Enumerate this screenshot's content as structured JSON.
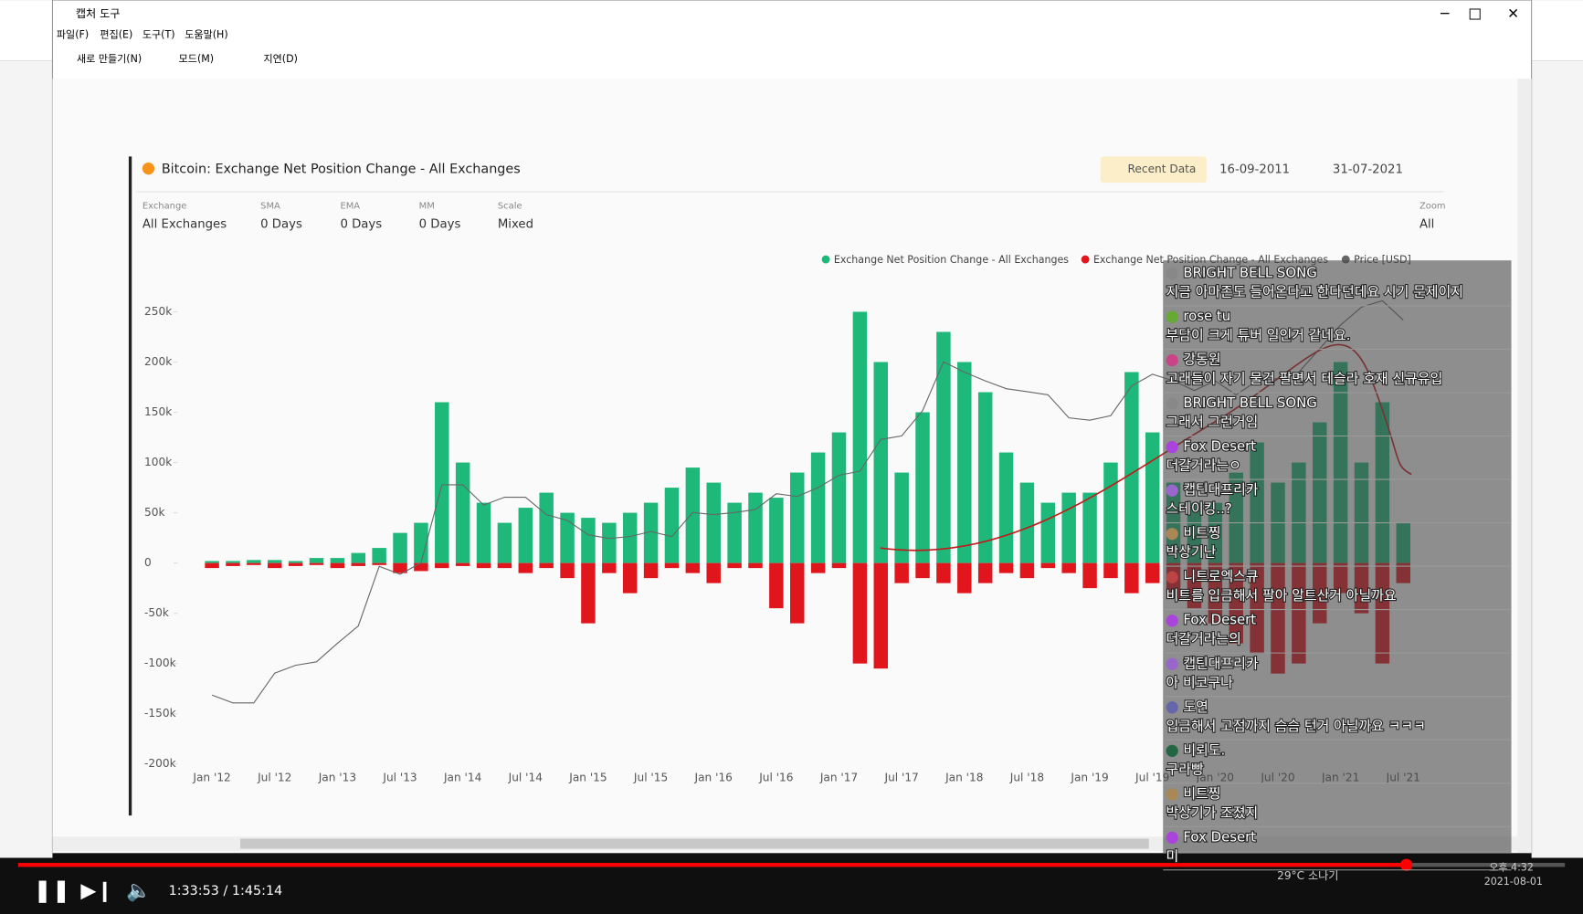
{
  "window": {
    "title": "캡처 도구",
    "menu": [
      "파일(F)",
      "편집(E)",
      "도구(T)",
      "도움말(H)"
    ],
    "toolbar": [
      "새로 만들기(N)",
      "모드(M)",
      "지연(D)"
    ]
  },
  "chart_data": {
    "type": "bar",
    "title": "Bitcoin: Exchange Net Position Change - All Exchanges",
    "recent_button": "Recent Data",
    "date_from": "16-09-2011",
    "date_to": "31-07-2021",
    "filters": [
      {
        "label": "Exchange",
        "value": "All Exchanges"
      },
      {
        "label": "SMA",
        "value": "0 Days"
      },
      {
        "label": "EMA",
        "value": "0 Days"
      },
      {
        "label": "MM",
        "value": "0 Days"
      },
      {
        "label": "Scale",
        "value": "Mixed"
      },
      {
        "label": "Zoom",
        "value": "All"
      }
    ],
    "categories": [
      "Jan '12",
      null,
      null,
      "Jul '12",
      null,
      null,
      "Jan '13",
      null,
      null,
      "Jul '13",
      null,
      null,
      "Jan '14",
      null,
      null,
      "Jul '14",
      null,
      null,
      "Jan '15",
      null,
      null,
      "Jul '15",
      null,
      null,
      "Jan '16",
      null,
      null,
      "Jul '16",
      null,
      null,
      "Jan '17",
      null,
      null,
      "Jul '17",
      null,
      null,
      "Jan '18",
      null,
      null,
      "Jul '18",
      null,
      null,
      "Jan '19",
      null,
      null,
      "Jul '19",
      null,
      null,
      "Jan '20",
      null,
      null,
      "Jul '20",
      null,
      null,
      "Jan '21",
      null,
      null,
      "Jul '21"
    ],
    "series": [
      {
        "name": "Exchange Net Position Change - All Exchanges",
        "color": "#1db87a",
        "values": [
          2000,
          2000,
          3000,
          3000,
          2000,
          5000,
          5000,
          10000,
          15000,
          30000,
          40000,
          160000,
          100000,
          60000,
          40000,
          55000,
          70000,
          50000,
          45000,
          40000,
          50000,
          60000,
          75000,
          95000,
          80000,
          60000,
          70000,
          65000,
          90000,
          110000,
          130000,
          250000,
          200000,
          90000,
          150000,
          230000,
          200000,
          170000,
          110000,
          80000,
          60000,
          70000,
          70000,
          100000,
          190000,
          130000,
          80000,
          60000,
          60000,
          90000,
          120000,
          80000,
          100000,
          140000,
          200000,
          100000,
          160000,
          40000
        ]
      },
      {
        "name": "Exchange Net Position Change - All Exchanges",
        "color": "#e0161c",
        "values": [
          -5000,
          -3000,
          -2000,
          -5000,
          -3000,
          -2000,
          -5000,
          -3000,
          -2000,
          -10000,
          -8000,
          -5000,
          -3000,
          -5000,
          -5000,
          -10000,
          -5000,
          -15000,
          -60000,
          -10000,
          -30000,
          -15000,
          -5000,
          -10000,
          -20000,
          -5000,
          -5000,
          -45000,
          -60000,
          -10000,
          -5000,
          -100000,
          -105000,
          -20000,
          -15000,
          -20000,
          -30000,
          -20000,
          -10000,
          -15000,
          -5000,
          -10000,
          -25000,
          -15000,
          -30000,
          -20000,
          -35000,
          -45000,
          -60000,
          -80000,
          -90000,
          -110000,
          -100000,
          -60000,
          -30000,
          -50000,
          -100000,
          -20000
        ]
      },
      {
        "name": "Price [USD]",
        "color": "#666666",
        "axis": "y2",
        "values": [
          6,
          5,
          5,
          10,
          12,
          13,
          20,
          30,
          120,
          100,
          130,
          800,
          800,
          500,
          600,
          600,
          400,
          350,
          250,
          230,
          240,
          270,
          240,
          420,
          400,
          420,
          450,
          650,
          610,
          750,
          1000,
          1100,
          2300,
          2500,
          4500,
          14000,
          11000,
          9000,
          7500,
          7000,
          6500,
          3800,
          3600,
          4000,
          8000,
          10500,
          9000,
          7200,
          9000,
          6500,
          9000,
          9500,
          11000,
          19000,
          33000,
          50000,
          58000,
          37000
        ]
      }
    ],
    "ylim": [
      -208000,
      269000
    ],
    "yticks": [
      {
        "value": -200000,
        "label": "-200k"
      },
      {
        "value": -150000,
        "label": "-150k"
      },
      {
        "value": -100000,
        "label": "-100k"
      },
      {
        "value": -50000,
        "label": "-50k"
      },
      0,
      {
        "value": 50000,
        "label": "50k"
      },
      {
        "value": 100000,
        "label": "100k"
      },
      {
        "value": 150000,
        "label": "150k"
      },
      {
        "value": 200000,
        "label": "200k"
      },
      {
        "value": 250000,
        "label": "250k"
      }
    ],
    "y2lim": [
      1,
      70000
    ],
    "y2log": true
  },
  "chat": [
    {
      "name": "BRIGHT BELL SONG",
      "text": "지금 아마존도 들어온다고 한다던데요 시기 문제이지"
    },
    {
      "name": "rose tu",
      "text": "부담이 크게 튜버 일인거 같네요."
    },
    {
      "name": "강동원",
      "text": "고래들이 자기 물건 팔면서 테슬라 호재 신규유입"
    },
    {
      "name": "BRIGHT BELL SONG",
      "text": "그래서 그런거임"
    },
    {
      "name": "Fox Desert",
      "text": "더갈거라는ㅇ"
    },
    {
      "name": "캡틴대프리카",
      "text": "스테이킹..?"
    },
    {
      "name": "비트찡",
      "text": "박상기난"
    },
    {
      "name": "니트로엑스큐",
      "text": "비트를 입금해서 팔아 알트산거 아닐까요"
    },
    {
      "name": "Fox Desert",
      "text": "더갈거라는의"
    },
    {
      "name": "캡틴대프리카",
      "text": "아 비코구나"
    },
    {
      "name": "도연",
      "text": "입금해서 고점까지 슴슴 턴거 아닐까요 ㅋㅋㅋ"
    },
    {
      "name": "비뢰도.",
      "text": "구라빵"
    },
    {
      "name": "비트찡",
      "text": "박상기가 조졌지"
    },
    {
      "name": "Fox Desert",
      "text": "미"
    }
  ],
  "video": {
    "time": "1:33:53 / 1:45:14"
  },
  "taskbar": {
    "weather": "29°C 소나기",
    "clock": "오후 4:32",
    "date": "2021-08-01"
  }
}
